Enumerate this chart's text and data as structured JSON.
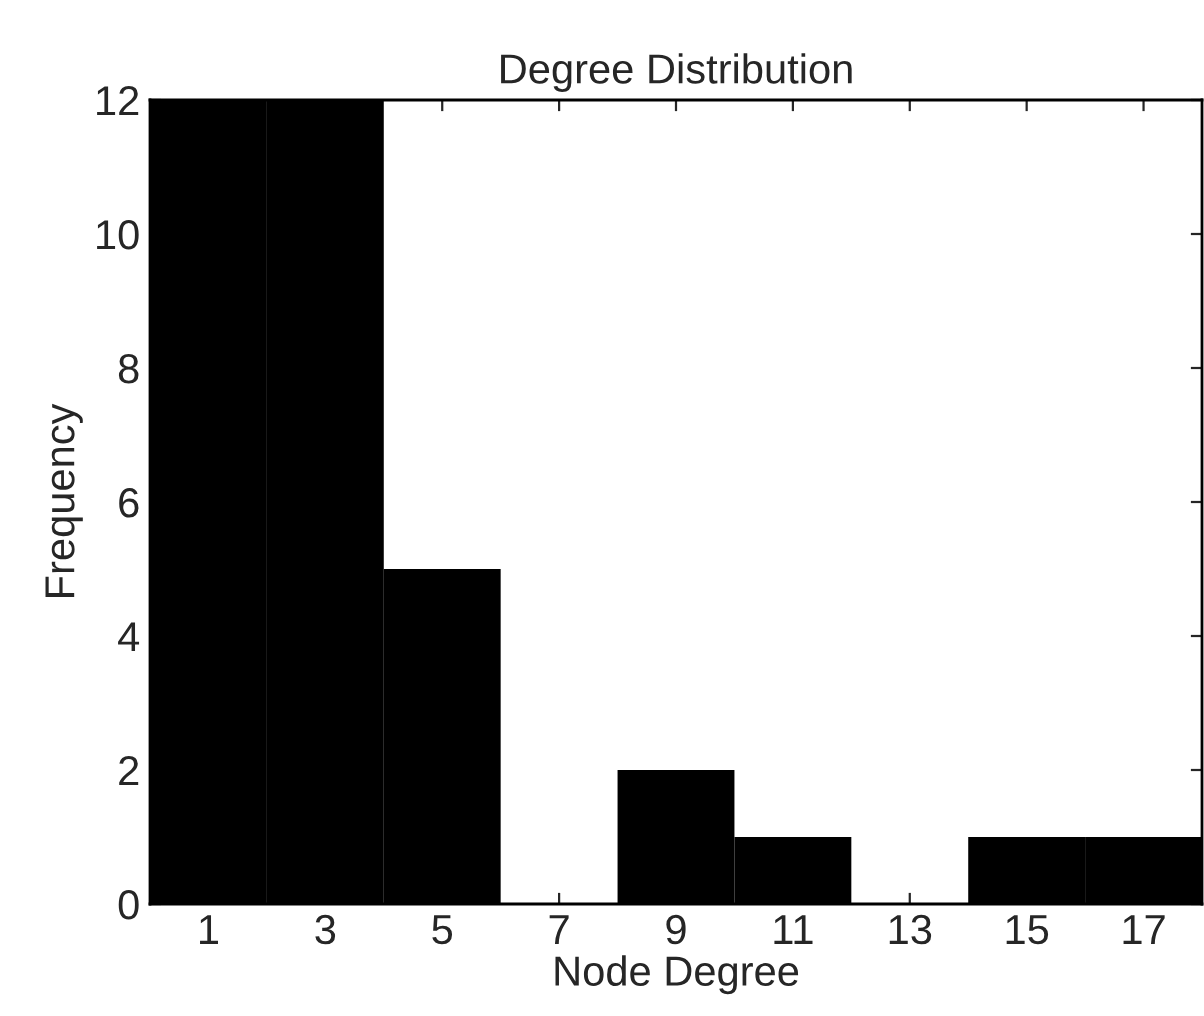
{
  "chart_data": {
    "type": "histogram",
    "title": "Degree Distribution",
    "xlabel": "Node Degree",
    "ylabel": "Frequency",
    "bins": [
      0,
      2,
      4,
      6,
      8,
      10,
      12,
      14,
      16,
      18
    ],
    "values": [
      12,
      12,
      5,
      0,
      2,
      1,
      0,
      1,
      1
    ],
    "color": "#000000",
    "xlim": [
      0,
      18
    ],
    "xticks": [
      1,
      3,
      5,
      7,
      9,
      11,
      13,
      15,
      17
    ],
    "ylim": [
      0,
      12
    ],
    "yticks": [
      0,
      2,
      4,
      6,
      8,
      10,
      12
    ],
    "grid": false
  }
}
